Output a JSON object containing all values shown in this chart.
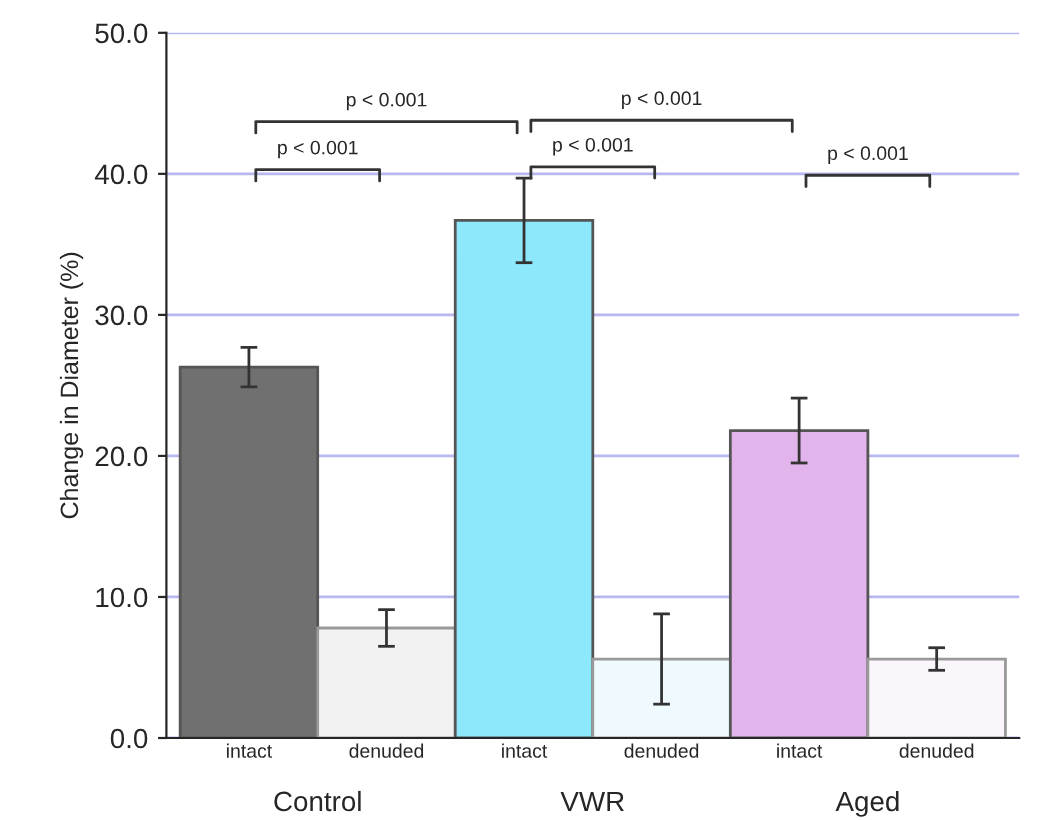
{
  "chart_data": {
    "type": "bar",
    "ylabel": "Change in Diameter (%)",
    "categories": [
      "intact",
      "denuded",
      "intact",
      "denuded",
      "intact",
      "denuded"
    ],
    "values": [
      26.3,
      7.8,
      36.7,
      5.6,
      21.8,
      5.6
    ],
    "errors": [
      1.4,
      1.3,
      3.0,
      3.2,
      2.3,
      0.8
    ],
    "colors": [
      "#707070",
      "#f2f2f2",
      "#8ee8fb",
      "#eefafd",
      "#e2b4ec",
      "#faf6fb"
    ],
    "ylim": [
      0,
      50
    ],
    "yticks": [
      {
        "value": 0,
        "label": "0.0"
      },
      {
        "value": 10,
        "label": "10.0"
      },
      {
        "value": 20,
        "label": "20.0"
      },
      {
        "value": 30,
        "label": "30.0"
      },
      {
        "value": 40,
        "label": "40.0"
      },
      {
        "value": 50,
        "label": "50.0"
      }
    ],
    "grid": "y",
    "annotations": [
      "Control",
      "VWR",
      "Aged",
      "p < 0.001",
      "p < 0.001",
      "p < 0.001",
      "p < 0.001",
      "p < 0.001"
    ]
  }
}
